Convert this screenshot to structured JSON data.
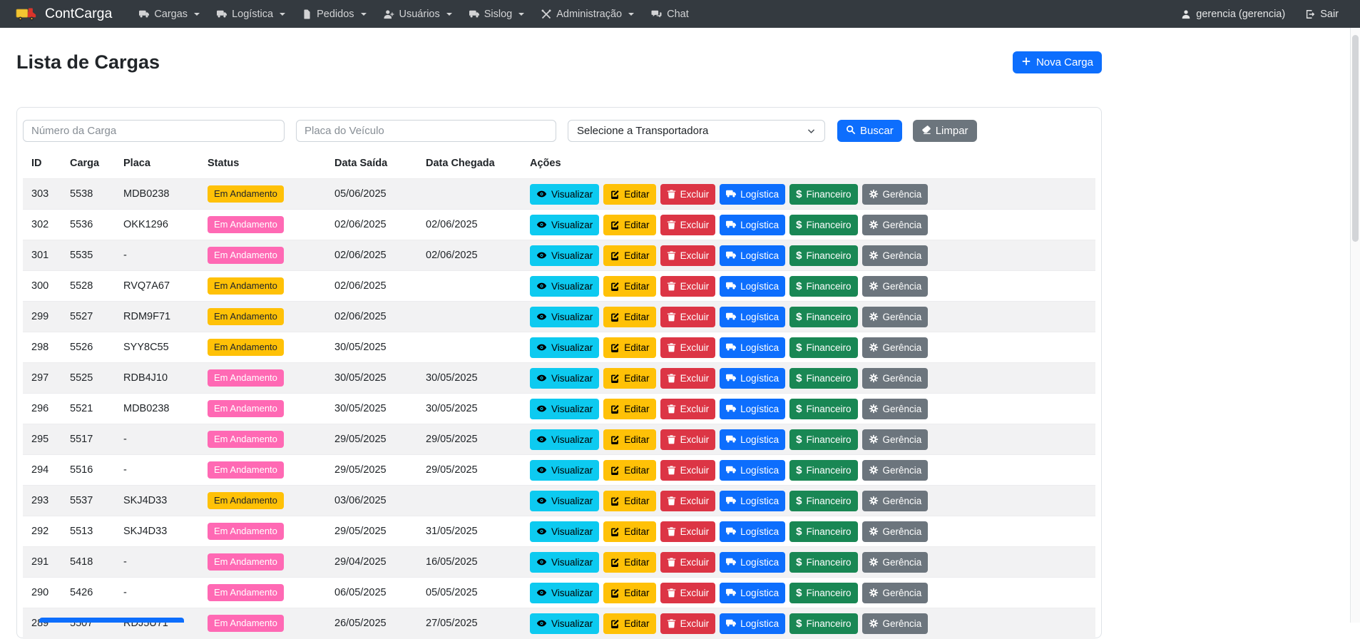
{
  "navbar": {
    "brand": "ContCarga",
    "logo_icon": "truck-logo-icon",
    "items": [
      {
        "label": "Cargas",
        "icon": "truck-icon",
        "dropdown": true
      },
      {
        "label": "Logística",
        "icon": "truck-icon",
        "dropdown": true
      },
      {
        "label": "Pedidos",
        "icon": "document-icon",
        "dropdown": true
      },
      {
        "label": "Usuários",
        "icon": "user-plus-icon",
        "dropdown": true
      },
      {
        "label": "Sislog",
        "icon": "truck-icon",
        "dropdown": true
      },
      {
        "label": "Administração",
        "icon": "tools-icon",
        "dropdown": true
      },
      {
        "label": "Chat",
        "icon": "chat-icon",
        "dropdown": false
      }
    ],
    "user": {
      "label": "gerencia (gerencia)",
      "icon": "person-icon"
    },
    "logout": {
      "label": "Sair",
      "icon": "logout-icon"
    }
  },
  "page": {
    "title": "Lista de Cargas",
    "new_button": {
      "label": "Nova Carga",
      "icon": "plus-icon"
    }
  },
  "filters": {
    "carga_number": {
      "placeholder": "Número da Carga",
      "value": ""
    },
    "plate": {
      "placeholder": "Placa do Veículo",
      "value": ""
    },
    "transporter": {
      "selected": "Selecione a Transportadora"
    },
    "search_button": {
      "label": "Buscar",
      "icon": "search-icon"
    },
    "clear_button": {
      "label": "Limpar",
      "icon": "eraser-icon"
    }
  },
  "palette": {
    "navbar_bg": "#343a40",
    "accent_blue": "#0d6efd",
    "info_cyan": "#0dcaf0",
    "warning_yellow": "#ffc107",
    "danger_red": "#dc3545",
    "success_green": "#198754",
    "secondary_gray": "#6c757d",
    "badge_pink": "#ff69b4"
  },
  "table": {
    "headers": [
      "ID",
      "Carga",
      "Placa",
      "Status",
      "Data Saída",
      "Data Chegada",
      "Ações"
    ],
    "status_colors": {
      "yellow": "#ffc107",
      "pink": "#ff69b4"
    },
    "status_text_colors": {
      "yellow": "#212529",
      "pink": "#ffffff"
    },
    "action_buttons": [
      {
        "label": "Visualizar",
        "icon": "eye-icon",
        "variant": "info",
        "name": "visualizar-button"
      },
      {
        "label": "Editar",
        "icon": "pencil-icon",
        "variant": "warning",
        "name": "editar-button"
      },
      {
        "label": "Excluir",
        "icon": "trash-icon",
        "variant": "danger",
        "name": "excluir-button"
      },
      {
        "label": "Logística",
        "icon": "truck-icon",
        "variant": "primary",
        "name": "logistica-button"
      },
      {
        "label": "Financeiro",
        "icon": "dollar-icon",
        "variant": "success",
        "name": "financeiro-button"
      },
      {
        "label": "Gerência",
        "icon": "gear-icon",
        "variant": "secondary",
        "name": "gerencia-button"
      }
    ],
    "rows": [
      {
        "id": "303",
        "carga": "5538",
        "placa": "MDB0238",
        "status": "Em Andamento",
        "status_variant": "yellow",
        "saida": "05/06/2025",
        "chegada": ""
      },
      {
        "id": "302",
        "carga": "5536",
        "placa": "OKK1296",
        "status": "Em Andamento",
        "status_variant": "pink",
        "saida": "02/06/2025",
        "chegada": "02/06/2025"
      },
      {
        "id": "301",
        "carga": "5535",
        "placa": "-",
        "status": "Em Andamento",
        "status_variant": "pink",
        "saida": "02/06/2025",
        "chegada": "02/06/2025"
      },
      {
        "id": "300",
        "carga": "5528",
        "placa": "RVQ7A67",
        "status": "Em Andamento",
        "status_variant": "yellow",
        "saida": "02/06/2025",
        "chegada": ""
      },
      {
        "id": "299",
        "carga": "5527",
        "placa": "RDM9F71",
        "status": "Em Andamento",
        "status_variant": "yellow",
        "saida": "02/06/2025",
        "chegada": ""
      },
      {
        "id": "298",
        "carga": "5526",
        "placa": "SYY8C55",
        "status": "Em Andamento",
        "status_variant": "yellow",
        "saida": "30/05/2025",
        "chegada": ""
      },
      {
        "id": "297",
        "carga": "5525",
        "placa": "RDB4J10",
        "status": "Em Andamento",
        "status_variant": "pink",
        "saida": "30/05/2025",
        "chegada": "30/05/2025"
      },
      {
        "id": "296",
        "carga": "5521",
        "placa": "MDB0238",
        "status": "Em Andamento",
        "status_variant": "pink",
        "saida": "30/05/2025",
        "chegada": "30/05/2025"
      },
      {
        "id": "295",
        "carga": "5517",
        "placa": "-",
        "status": "Em Andamento",
        "status_variant": "pink",
        "saida": "29/05/2025",
        "chegada": "29/05/2025"
      },
      {
        "id": "294",
        "carga": "5516",
        "placa": "-",
        "status": "Em Andamento",
        "status_variant": "pink",
        "saida": "29/05/2025",
        "chegada": "29/05/2025"
      },
      {
        "id": "293",
        "carga": "5537",
        "placa": "SKJ4D33",
        "status": "Em Andamento",
        "status_variant": "yellow",
        "saida": "03/06/2025",
        "chegada": ""
      },
      {
        "id": "292",
        "carga": "5513",
        "placa": "SKJ4D33",
        "status": "Em Andamento",
        "status_variant": "pink",
        "saida": "29/05/2025",
        "chegada": "31/05/2025"
      },
      {
        "id": "291",
        "carga": "5418",
        "placa": "-",
        "status": "Em Andamento",
        "status_variant": "pink",
        "saida": "29/04/2025",
        "chegada": "16/05/2025"
      },
      {
        "id": "290",
        "carga": "5426",
        "placa": "-",
        "status": "Em Andamento",
        "status_variant": "pink",
        "saida": "06/05/2025",
        "chegada": "05/05/2025"
      },
      {
        "id": "289",
        "carga": "5507",
        "placa": "RDJ5U71",
        "status": "Em Andamento",
        "status_variant": "pink",
        "saida": "26/05/2025",
        "chegada": "27/05/2025"
      }
    ]
  }
}
